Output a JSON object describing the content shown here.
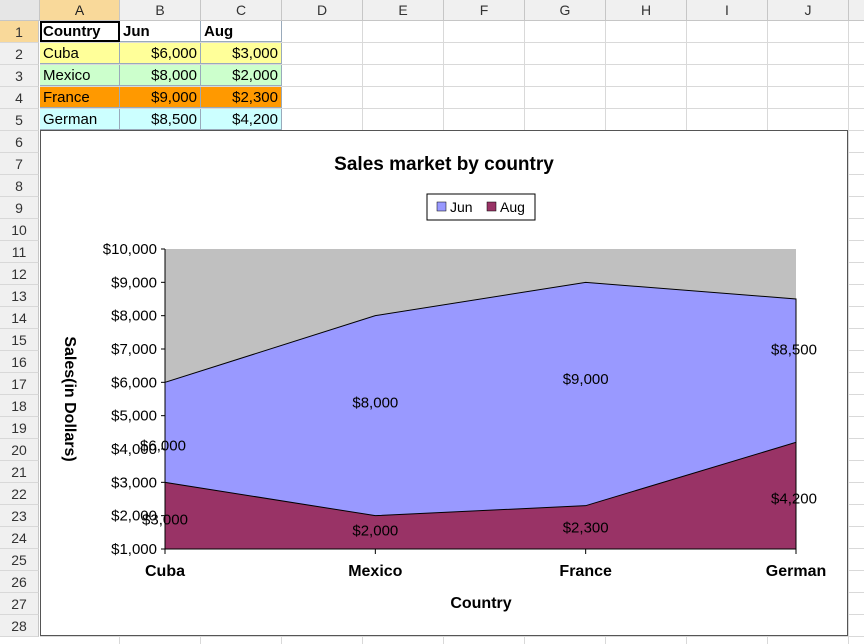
{
  "columns": [
    "A",
    "B",
    "C",
    "D",
    "E",
    "F",
    "G",
    "H",
    "I",
    "J"
  ],
  "rows": [
    "1",
    "2",
    "3",
    "4",
    "5",
    "6",
    "7",
    "8",
    "9",
    "10",
    "11",
    "12",
    "13",
    "14",
    "15",
    "16",
    "17",
    "18",
    "19",
    "20",
    "21",
    "22",
    "23",
    "24",
    "25",
    "26",
    "27",
    "28"
  ],
  "table": {
    "headers": [
      "Country",
      "Jun",
      "Aug"
    ],
    "rows": [
      {
        "country": "Cuba",
        "jun": "$6,000",
        "aug": "$3,000",
        "fill": "#ffff99"
      },
      {
        "country": "Mexico",
        "jun": "$8,000",
        "aug": "$2,000",
        "fill": "#ccffcc"
      },
      {
        "country": "France",
        "jun": "$9,000",
        "aug": "$2,300",
        "fill": "#ff9900"
      },
      {
        "country": "German",
        "jun": "$8,500",
        "aug": "$4,200",
        "fill": "#ccffff"
      }
    ]
  },
  "chart_data": {
    "type": "area",
    "title": "Sales market by country",
    "xlabel": "Country",
    "ylabel": "Sales(in Dollars)",
    "categories": [
      "Cuba",
      "Mexico",
      "France",
      "German"
    ],
    "series": [
      {
        "name": "Jun",
        "values": [
          6000,
          8000,
          9000,
          8500
        ],
        "color": "#9999ff"
      },
      {
        "name": "Aug",
        "values": [
          3000,
          2000,
          2300,
          4200
        ],
        "color": "#993366"
      }
    ],
    "data_labels": {
      "Jun": [
        "$6,000",
        "$8,000",
        "$9,000",
        "$8,500"
      ],
      "Aug": [
        "$3,000",
        "$2,000",
        "$2,300",
        "$4,200"
      ]
    },
    "ylim": [
      1000,
      10000
    ],
    "yticks": [
      "$1,000",
      "$2,000",
      "$3,000",
      "$4,000",
      "$5,000",
      "$6,000",
      "$7,000",
      "$8,000",
      "$9,000",
      "$10,000"
    ],
    "plot_background": "#c0c0c0",
    "legend_position": "top"
  }
}
